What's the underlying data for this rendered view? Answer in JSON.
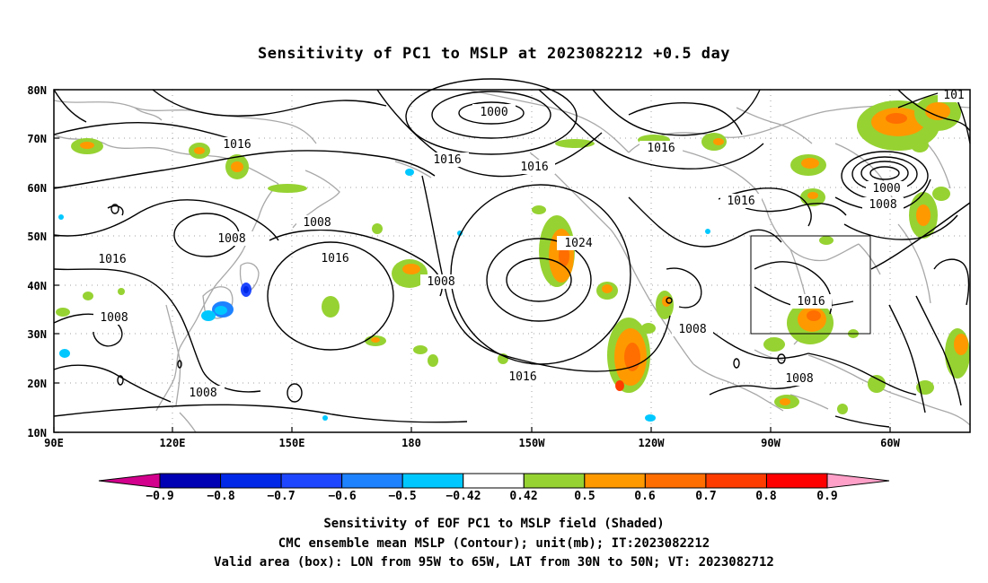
{
  "title": "Sensitivity of PC1 to MSLP at 2023082212 +0.5 day",
  "lat_labels": [
    "80N",
    "70N",
    "60N",
    "50N",
    "40N",
    "30N",
    "20N",
    "10N"
  ],
  "lon_labels": [
    "90E",
    "120E",
    "150E",
    "180",
    "150W",
    "120W",
    "90W",
    "60W"
  ],
  "contour_labels": [
    "1000",
    "1016",
    "1016",
    "1016",
    "1016",
    "1008",
    "1008",
    "1016",
    "1024",
    "1016",
    "1008",
    "1016",
    "1000",
    "1008",
    "1016",
    "1008",
    "1008",
    "1008",
    "1016",
    "1008",
    "1008",
    "101"
  ],
  "colorbar": {
    "labels": [
      "−0.9",
      "−0.8",
      "−0.7",
      "−0.6",
      "−0.5",
      "−0.42",
      "0.42",
      "0.5",
      "0.6",
      "0.7",
      "0.8",
      "0.9"
    ],
    "colors": [
      "#0000b4",
      "#0028e6",
      "#1e46ff",
      "#1e82ff",
      "#00c8ff",
      "#ffffff",
      "#96d232",
      "#ff9900",
      "#ff6e00",
      "#ff3c00",
      "#ff0000"
    ],
    "low_arrow_color": "#d2008c",
    "high_arrow_color": "#ffa0c8"
  },
  "box": {
    "lon_from": "95W",
    "lon_to": "65W",
    "lat_from": "30N",
    "lat_to": "50N"
  },
  "caption": {
    "line1": "Sensitivity of EOF PC1 to MSLP field (Shaded)",
    "line2": "CMC ensemble mean MSLP (Contour); unit(mb); IT:2023082212",
    "line3": "Valid area (box): LON from 95W to 65W, LAT from 30N to 50N; VT: 2023082712"
  }
}
